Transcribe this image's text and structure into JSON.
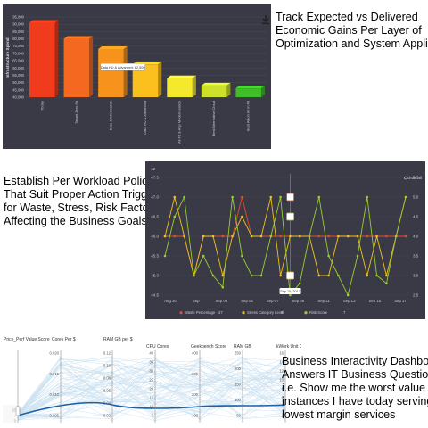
{
  "captions": {
    "top": [
      "Track Expected vs Delivered",
      "Economic Gains Per Layer of",
      "Optimization and System Applied"
    ],
    "middle": [
      "Establish Per Workload Policies",
      "That Suit Proper Action Triggers",
      "for Waste, Stress, Risk Factors",
      "Affecting the Business Goals"
    ],
    "bottom": [
      "Business Interactivity Dashboard",
      "Answers IT Business Questions",
      "i.e. Show me the worst value",
      "instances I have today serving",
      "lowest margin services"
    ]
  },
  "icons": {
    "export": "download-icon",
    "show_all": "search-icon"
  },
  "chart_data": [
    {
      "type": "bar",
      "title": "",
      "ylabel": "Infrastructure Spend",
      "xlabel": "",
      "categories": [
        "Today",
        "Target Zero Fit",
        "Data & Information",
        "Data HU & Advanced",
        "All Fit & App Modernization",
        "Best Alternative Cloud",
        "Best All on All in Fit"
      ],
      "values": [
        91000,
        80000,
        73000,
        62500,
        53000,
        48000,
        46000
      ],
      "ylim": [
        40000,
        95000
      ],
      "yticks": [
        "95,000",
        "90,000",
        "85,000",
        "80,000",
        "75,000",
        "70,000",
        "65,000",
        "60,000",
        "55,000",
        "50,000",
        "45,000",
        "40,000"
      ],
      "colors": [
        "#f03b1d",
        "#f5681f",
        "#f7931d",
        "#fbbf1e",
        "#f4e92a",
        "#cde02a",
        "#3fbe2a"
      ],
      "tooltip": "Data HU & Advanced: 62,500",
      "background": "#3a3a47"
    },
    {
      "type": "line",
      "title": "",
      "x_ticks": [
        "Aug 30",
        "Sep",
        "Sep 03",
        "Sep 05",
        "Sep 07",
        "Sep 09",
        "Sep 11",
        "Sep 13",
        "Sep 15",
        "Sep 17"
      ],
      "y_left_ticks": [
        "47.5",
        "47.0",
        "46.5",
        "46.0",
        "45.5",
        "45.0",
        "44.5"
      ],
      "y_left_extra": "12",
      "y_right_ticks": [
        "5.5",
        "5.0",
        "4.5",
        "4.0",
        "3.5",
        "3.0",
        "2.5"
      ],
      "series": [
        {
          "name": "Waste Percentage",
          "value": "47",
          "color": "#e84a2e",
          "values": [
            46.0,
            46.0,
            46.0,
            45.0,
            46.0,
            46.0,
            46.0,
            46.0,
            47.0,
            46.0,
            46.0,
            46.0,
            46.0,
            46.0,
            46.0,
            46.0,
            46.0,
            46.0,
            46.0,
            46.0,
            46.0,
            46.0,
            46.0,
            46.0,
            46.0,
            46.0
          ]
        },
        {
          "name": "Stress Category Level",
          "value": "3",
          "color": "#f2c218",
          "values": [
            46.0,
            47.0,
            46.0,
            45.0,
            46.0,
            46.0,
            45.0,
            46.0,
            46.5,
            46.0,
            46.0,
            47.0,
            45.0,
            46.0,
            46.0,
            46.0,
            45.0,
            45.0,
            46.0,
            46.0,
            46.0,
            45.0,
            46.0,
            45.0,
            46.0,
            47.0
          ]
        },
        {
          "name": "Risk Score",
          "value": "7",
          "color": "#9acd32",
          "values": [
            45.5,
            46.5,
            47.0,
            45.0,
            45.5,
            45.0,
            44.7,
            47.0,
            45.5,
            45.0,
            45.0,
            46.0,
            47.0,
            44.5,
            44.8,
            46.0,
            47.0,
            45.5,
            45.0,
            44.5,
            45.5,
            47.0,
            45.0,
            44.8,
            46.0,
            47.0
          ]
        }
      ],
      "tooltip": "Sep 10, 2017",
      "show_all_label": "Show all",
      "background": "#3a3a47"
    },
    {
      "type": "parallel_coordinates",
      "title": "",
      "axes": [
        {
          "label": "Price_Perf Value Score",
          "ticks": [
            "20",
            "0"
          ]
        },
        {
          "label": "Cores Per $",
          "ticks": [
            "0.020",
            "0.015",
            "0.010",
            "0.005"
          ]
        },
        {
          "label": "RAM GB per $",
          "ticks": [
            "0.12",
            "0.10",
            "0.08",
            "0.06",
            "0.04",
            "0.02"
          ]
        },
        {
          "label": "CPU Cores",
          "ticks": [
            "40",
            "35",
            "30",
            "25",
            "20",
            "15",
            "10",
            "5"
          ]
        },
        {
          "label": "Geekbench Score",
          "ticks": [
            "400",
            "300",
            "200",
            "100"
          ]
        },
        {
          "label": "RAM GB",
          "ticks": [
            "250",
            "200",
            "150",
            "100",
            "50"
          ]
        },
        {
          "label": "kWork Unit Capacity",
          "ticks": [
            "16",
            "14",
            "12",
            "10",
            "8",
            "6",
            "4",
            "2"
          ]
        }
      ],
      "line_color": "#9cc6e4",
      "highlight_color": "#1a5fa8",
      "brush_label": "20"
    }
  ]
}
